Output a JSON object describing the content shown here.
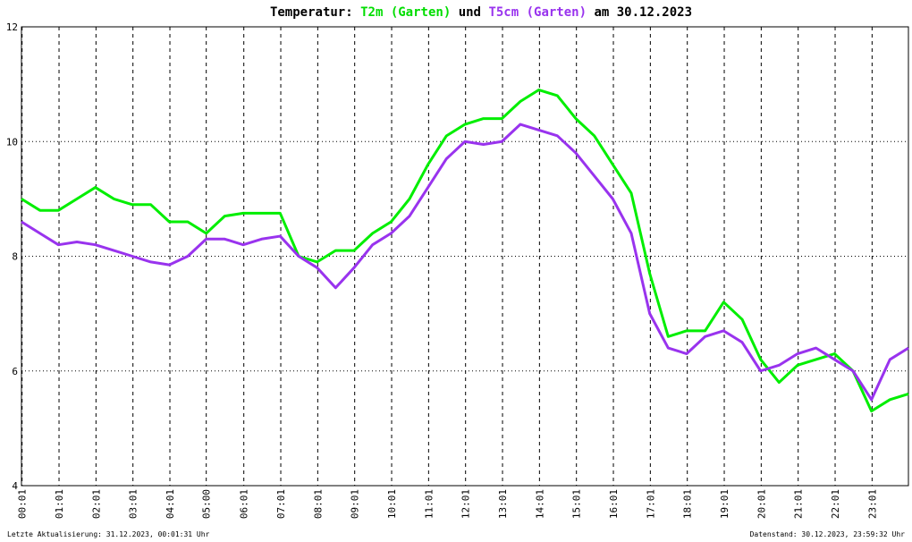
{
  "chart_data": {
    "type": "line",
    "title": {
      "prefix": "Temperatur:",
      "joiner": "und",
      "suffix": "am 30.12.2023"
    },
    "footer_left": "Letzte Aktualisierung: 31.12.2023, 00:01:31 Uhr",
    "footer_right": "Datenstand: 30.12.2023, 23:59:32 Uhr",
    "x": [
      0,
      0.5,
      1,
      1.5,
      2,
      2.5,
      3,
      3.5,
      4,
      4.5,
      5,
      5.5,
      6,
      6.5,
      7,
      7.5,
      8,
      8.5,
      9,
      9.5,
      10,
      10.5,
      11,
      11.5,
      12,
      12.5,
      13,
      13.5,
      14,
      14.5,
      15,
      15.5,
      16,
      16.5,
      17,
      17.5,
      18,
      18.5,
      19,
      19.5,
      20,
      20.5,
      21,
      21.5,
      22,
      22.5,
      23,
      23.5,
      24
    ],
    "series": [
      {
        "name": "T2m (Garten)",
        "color": "#00ee00",
        "values": [
          9.0,
          8.8,
          8.8,
          9.0,
          9.2,
          9.0,
          8.9,
          8.9,
          8.6,
          8.6,
          8.4,
          8.7,
          8.75,
          8.75,
          8.75,
          8.0,
          7.9,
          8.1,
          8.1,
          8.4,
          8.6,
          9.0,
          9.6,
          10.1,
          10.3,
          10.4,
          10.4,
          10.7,
          10.9,
          10.8,
          10.4,
          10.1,
          9.6,
          9.1,
          7.7,
          6.6,
          6.7,
          6.7,
          7.2,
          6.9,
          6.2,
          5.8,
          6.1,
          6.2,
          6.3,
          6.0,
          5.3,
          5.5,
          5.6
        ]
      },
      {
        "name": "T5cm (Garten)",
        "color": "#9933ee",
        "values": [
          8.6,
          8.4,
          8.2,
          8.25,
          8.2,
          8.1,
          8.0,
          7.9,
          7.85,
          8.0,
          8.3,
          8.3,
          8.2,
          8.3,
          8.35,
          8.0,
          7.8,
          7.45,
          7.8,
          8.2,
          8.4,
          8.7,
          9.2,
          9.7,
          10.0,
          9.95,
          10.0,
          10.3,
          10.2,
          10.1,
          9.8,
          9.4,
          9.0,
          8.4,
          7.0,
          6.4,
          6.3,
          6.6,
          6.7,
          6.5,
          6.0,
          6.1,
          6.3,
          6.4,
          6.2,
          6.0,
          5.5,
          6.2,
          6.4
        ]
      }
    ],
    "xlim": [
      0,
      24
    ],
    "xticks": [
      {
        "value": 0.0167,
        "label": "00:01"
      },
      {
        "value": 1.0167,
        "label": "01:01"
      },
      {
        "value": 2.0167,
        "label": "02:01"
      },
      {
        "value": 3.0167,
        "label": "03:01"
      },
      {
        "value": 4.0167,
        "label": "04:01"
      },
      {
        "value": 5,
        "label": "05:00"
      },
      {
        "value": 6.0167,
        "label": "06:01"
      },
      {
        "value": 7.0167,
        "label": "07:01"
      },
      {
        "value": 8.0167,
        "label": "08:01"
      },
      {
        "value": 9.0167,
        "label": "09:01"
      },
      {
        "value": 10.0167,
        "label": "10:01"
      },
      {
        "value": 11.0167,
        "label": "11:01"
      },
      {
        "value": 12.0167,
        "label": "12:01"
      },
      {
        "value": 13.0167,
        "label": "13:01"
      },
      {
        "value": 14.0167,
        "label": "14:01"
      },
      {
        "value": 15.0167,
        "label": "15:01"
      },
      {
        "value": 16.0167,
        "label": "16:01"
      },
      {
        "value": 17.0167,
        "label": "17:01"
      },
      {
        "value": 18.0167,
        "label": "18:01"
      },
      {
        "value": 19.0167,
        "label": "19:01"
      },
      {
        "value": 20.0167,
        "label": "20:01"
      },
      {
        "value": 21.0167,
        "label": "21:01"
      },
      {
        "value": 22.0167,
        "label": "22:01"
      },
      {
        "value": 23.0167,
        "label": "23:01"
      }
    ],
    "ylim": [
      4,
      12
    ],
    "yticks": [
      4,
      6,
      8,
      10,
      12
    ],
    "grid": true
  }
}
